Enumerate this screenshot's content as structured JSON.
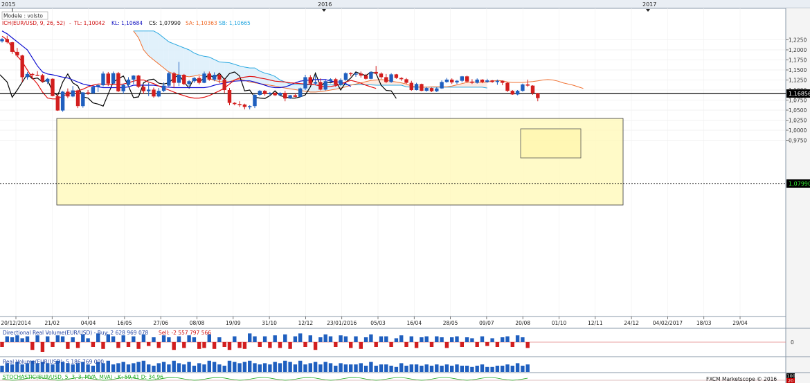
{
  "header": {
    "years": [
      "2015",
      "2016",
      "2017"
    ],
    "mode_label": "Modele : volsto",
    "indicator_label": "ICH(EUR/USD, 9, 26, 52)",
    "tl": "TL: 1,10042",
    "kl": "KL: 1,10684",
    "cs": "CS: 1,07990",
    "sa": "SA: 1,10363",
    "sb": "SB: 1,10665"
  },
  "price_axis": {
    "ticks": [
      "1,2250",
      "1,2000",
      "1,1750",
      "1,1500",
      "1,1250",
      "1,1000",
      "1,0750",
      "1,0500",
      "1,0250",
      "1,0000",
      "0,9750"
    ],
    "hline_label": "1,16856",
    "last_label": "1,07990"
  },
  "date_axis": {
    "labels": [
      "20/12/2014",
      "21/02",
      "04/04",
      "16/05",
      "27/06",
      "08/08",
      "19/09",
      "31/10",
      "12/12",
      "23/01/2016",
      "05/03",
      "16/04",
      "28/05",
      "09/07",
      "20/08",
      "01/10",
      "12/11",
      "24/12",
      "04/02/2017",
      "18/03",
      "29/04"
    ]
  },
  "panels": {
    "directional": {
      "title": "Directional Real Volume(EUR/USD) -  Buy: 2 628 969 078",
      "sell": "Sell: -2 557 797 566",
      "zero": "0"
    },
    "volume": {
      "title": "Real Volume(EUR/USD): 5 186 769 000",
      "top": "100"
    },
    "stochastic": {
      "title": "STOCHASTIC(EUR/USD, 5, 3, 3, MVA, MVA) - K: 59,41  D: 34,96",
      "bottom": "20"
    }
  },
  "footer": {
    "brand": "FXCM Marketscope © 2016"
  },
  "colors": {
    "up": "#1f5fbf",
    "down": "#d21e1e",
    "tenkan": "#e01010",
    "kijun": "#1010d0",
    "senkou_a": "#f07030",
    "senkou_b": "#29a8e0",
    "chikou": "#000000",
    "box": "#fff8b8"
  },
  "chart_data": {
    "type": "candlestick",
    "timeframe": "weekly",
    "symbol": "EUR/USD",
    "start_date": "20/12/2014",
    "ylim": [
      0.9675,
      1.2475
    ],
    "hline": 1.16856,
    "last_price": 1.0799,
    "candles": [
      [
        1.2214,
        1.2298,
        1.218,
        1.227
      ],
      [
        1.227,
        1.235,
        1.216,
        1.219
      ],
      [
        1.219,
        1.22,
        1.19,
        1.195
      ],
      [
        1.195,
        1.205,
        1.182,
        1.186
      ],
      [
        1.186,
        1.188,
        1.12,
        1.132
      ],
      [
        1.132,
        1.145,
        1.126,
        1.14
      ],
      [
        1.14,
        1.143,
        1.128,
        1.138
      ],
      [
        1.138,
        1.147,
        1.135,
        1.137
      ],
      [
        1.137,
        1.14,
        1.118,
        1.121
      ],
      [
        1.121,
        1.13,
        1.115,
        1.128
      ],
      [
        1.128,
        1.129,
        1.084,
        1.085
      ],
      [
        1.085,
        1.09,
        1.048,
        1.049
      ],
      [
        1.049,
        1.098,
        1.046,
        1.096
      ],
      [
        1.096,
        1.104,
        1.08,
        1.084
      ],
      [
        1.084,
        1.11,
        1.082,
        1.099
      ],
      [
        1.099,
        1.101,
        1.055,
        1.06
      ],
      [
        1.06,
        1.095,
        1.056,
        1.094
      ],
      [
        1.094,
        1.1,
        1.088,
        1.092
      ],
      [
        1.092,
        1.11,
        1.09,
        1.108
      ],
      [
        1.108,
        1.115,
        1.095,
        1.112
      ],
      [
        1.112,
        1.146,
        1.109,
        1.141
      ],
      [
        1.141,
        1.145,
        1.11,
        1.116
      ],
      [
        1.116,
        1.146,
        1.114,
        1.142
      ],
      [
        1.142,
        1.145,
        1.095,
        1.097
      ],
      [
        1.097,
        1.115,
        1.09,
        1.113
      ],
      [
        1.113,
        1.132,
        1.108,
        1.126
      ],
      [
        1.126,
        1.137,
        1.115,
        1.136
      ],
      [
        1.136,
        1.138,
        1.105,
        1.108
      ],
      [
        1.108,
        1.112,
        1.09,
        1.097
      ],
      [
        1.097,
        1.118,
        1.085,
        1.101
      ],
      [
        1.101,
        1.106,
        1.081,
        1.084
      ],
      [
        1.084,
        1.105,
        1.082,
        1.098
      ],
      [
        1.098,
        1.119,
        1.095,
        1.111
      ],
      [
        1.111,
        1.145,
        1.108,
        1.142
      ],
      [
        1.142,
        1.145,
        1.105,
        1.118
      ],
      [
        1.118,
        1.17,
        1.11,
        1.138
      ],
      [
        1.138,
        1.14,
        1.112,
        1.115
      ],
      [
        1.115,
        1.125,
        1.11,
        1.122
      ],
      [
        1.122,
        1.132,
        1.118,
        1.13
      ],
      [
        1.13,
        1.135,
        1.114,
        1.118
      ],
      [
        1.118,
        1.146,
        1.117,
        1.141
      ],
      [
        1.141,
        1.146,
        1.123,
        1.126
      ],
      [
        1.126,
        1.144,
        1.122,
        1.138
      ],
      [
        1.138,
        1.142,
        1.117,
        1.126
      ],
      [
        1.126,
        1.13,
        1.092,
        1.1
      ],
      [
        1.1,
        1.105,
        1.062,
        1.068
      ],
      [
        1.068,
        1.07,
        1.062,
        1.065
      ],
      [
        1.065,
        1.072,
        1.058,
        1.064
      ],
      [
        1.064,
        1.066,
        1.052,
        1.058
      ],
      [
        1.058,
        1.062,
        1.052,
        1.06
      ],
      [
        1.06,
        1.09,
        1.055,
        1.088
      ],
      [
        1.088,
        1.1,
        1.085,
        1.098
      ],
      [
        1.098,
        1.1,
        1.086,
        1.09
      ],
      [
        1.09,
        1.095,
        1.086,
        1.093
      ],
      [
        1.093,
        1.095,
        1.085,
        1.087
      ],
      [
        1.087,
        1.095,
        1.085,
        1.093
      ],
      [
        1.093,
        1.098,
        1.072,
        1.079
      ],
      [
        1.079,
        1.088,
        1.078,
        1.087
      ],
      [
        1.087,
        1.092,
        1.082,
        1.083
      ],
      [
        1.083,
        1.106,
        1.082,
        1.104
      ],
      [
        1.104,
        1.138,
        1.1,
        1.132
      ],
      [
        1.132,
        1.137,
        1.115,
        1.116
      ],
      [
        1.116,
        1.138,
        1.112,
        1.12
      ],
      [
        1.12,
        1.129,
        1.099,
        1.101
      ],
      [
        1.101,
        1.125,
        1.099,
        1.122
      ],
      [
        1.122,
        1.129,
        1.118,
        1.127
      ],
      [
        1.127,
        1.13,
        1.108,
        1.113
      ],
      [
        1.113,
        1.129,
        1.11,
        1.125
      ],
      [
        1.125,
        1.144,
        1.123,
        1.142
      ],
      [
        1.142,
        1.144,
        1.134,
        1.14
      ],
      [
        1.14,
        1.144,
        1.133,
        1.141
      ],
      [
        1.141,
        1.146,
        1.131,
        1.136
      ],
      [
        1.136,
        1.14,
        1.126,
        1.128
      ],
      [
        1.128,
        1.146,
        1.127,
        1.145
      ],
      [
        1.145,
        1.16,
        1.139,
        1.141
      ],
      [
        1.141,
        1.144,
        1.128,
        1.132
      ],
      [
        1.132,
        1.14,
        1.117,
        1.12
      ],
      [
        1.12,
        1.142,
        1.118,
        1.139
      ],
      [
        1.139,
        1.14,
        1.128,
        1.13
      ],
      [
        1.13,
        1.132,
        1.123,
        1.127
      ],
      [
        1.127,
        1.13,
        1.115,
        1.118
      ],
      [
        1.118,
        1.123,
        1.098,
        1.1
      ],
      [
        1.1,
        1.118,
        1.099,
        1.115
      ],
      [
        1.115,
        1.116,
        1.097,
        1.098
      ],
      [
        1.098,
        1.108,
        1.096,
        1.105
      ],
      [
        1.105,
        1.106,
        1.095,
        1.097
      ],
      [
        1.097,
        1.107,
        1.095,
        1.104
      ],
      [
        1.104,
        1.124,
        1.103,
        1.12
      ],
      [
        1.12,
        1.13,
        1.118,
        1.126
      ],
      [
        1.126,
        1.129,
        1.115,
        1.119
      ],
      [
        1.119,
        1.125,
        1.115,
        1.123
      ],
      [
        1.123,
        1.135,
        1.119,
        1.134
      ],
      [
        1.134,
        1.136,
        1.118,
        1.121
      ],
      [
        1.121,
        1.127,
        1.115,
        1.118
      ],
      [
        1.118,
        1.129,
        1.116,
        1.126
      ],
      [
        1.126,
        1.127,
        1.117,
        1.12
      ],
      [
        1.12,
        1.128,
        1.118,
        1.124
      ],
      [
        1.124,
        1.125,
        1.118,
        1.12
      ],
      [
        1.12,
        1.126,
        1.113,
        1.123
      ],
      [
        1.123,
        1.124,
        1.112,
        1.118
      ],
      [
        1.118,
        1.12,
        1.095,
        1.098
      ],
      [
        1.098,
        1.1,
        1.088,
        1.089
      ],
      [
        1.089,
        1.1,
        1.087,
        1.098
      ],
      [
        1.098,
        1.116,
        1.096,
        1.114
      ],
      [
        1.114,
        1.126,
        1.108,
        1.111
      ],
      [
        1.111,
        1.112,
        1.088,
        1.092
      ],
      [
        1.092,
        1.093,
        1.072,
        1.0799
      ]
    ],
    "tenkan": [
      1.234,
      1.225,
      1.205,
      1.185,
      1.17,
      1.15,
      1.13,
      1.115,
      1.095,
      1.08,
      1.078,
      1.078,
      1.085,
      1.09,
      1.095,
      1.098,
      1.102,
      1.108,
      1.112,
      1.115,
      1.115,
      1.114,
      1.114,
      1.114,
      1.115,
      1.118,
      1.122,
      1.125,
      1.125,
      1.12,
      1.116,
      1.11,
      1.105,
      1.1,
      1.095,
      1.09,
      1.086,
      1.082,
      1.08,
      1.08,
      1.082,
      1.086,
      1.092,
      1.098,
      1.105,
      1.115,
      1.125,
      1.13,
      1.132,
      1.134,
      1.133,
      1.13,
      1.128,
      1.125,
      1.122,
      1.121,
      1.12,
      1.118,
      1.117,
      1.116,
      1.115,
      1.114,
      1.113,
      1.11,
      1.108,
      1.109,
      1.111,
      1.114,
      1.12,
      1.124,
      1.121,
      1.117,
      1.112,
      1.108,
      1.104
    ],
    "kijun": [
      1.247,
      1.24,
      1.23,
      1.22,
      1.21,
      1.2,
      1.18,
      1.16,
      1.145,
      1.14,
      1.138,
      1.135,
      1.132,
      1.13,
      1.125,
      1.12,
      1.115,
      1.112,
      1.11,
      1.108,
      1.106,
      1.106,
      1.106,
      1.106,
      1.106,
      1.108,
      1.112,
      1.112,
      1.112,
      1.112,
      1.112,
      1.11,
      1.108,
      1.107,
      1.106,
      1.106,
      1.106,
      1.106,
      1.106,
      1.106,
      1.106,
      1.108,
      1.112,
      1.115,
      1.117,
      1.12,
      1.122,
      1.123,
      1.123,
      1.123,
      1.12,
      1.116,
      1.112,
      1.108,
      1.106,
      1.106,
      1.108,
      1.112,
      1.118,
      1.122,
      1.124,
      1.125,
      1.126,
      1.126,
      1.126,
      1.122,
      1.12,
      1.12,
      1.116,
      1.109
    ],
    "senkou_a": [
      1.247,
      1.23,
      1.2,
      1.185,
      1.175,
      1.165,
      1.155,
      1.145,
      1.14,
      1.138,
      1.135,
      1.133,
      1.135,
      1.138,
      1.134,
      1.129,
      1.124,
      1.121,
      1.12,
      1.121,
      1.125,
      1.127,
      1.124,
      1.12,
      1.118,
      1.116,
      1.114,
      1.112,
      1.11,
      1.107,
      1.105,
      1.103,
      1.101,
      1.099,
      1.097,
      1.095,
      1.095,
      1.096,
      1.098,
      1.1,
      1.102,
      1.105,
      1.108,
      1.112,
      1.115,
      1.118,
      1.121,
      1.124,
      1.125,
      1.126,
      1.125,
      1.122,
      1.12,
      1.118,
      1.115,
      1.11,
      1.108,
      1.107,
      1.107,
      1.108,
      1.108,
      1.108,
      1.108,
      1.11,
      1.113,
      1.116,
      1.119,
      1.12,
      1.12,
      1.119,
      1.12,
      1.122,
      1.124,
      1.123,
      1.12,
      1.119,
      1.119,
      1.119,
      1.12,
      1.121,
      1.123,
      1.125,
      1.126,
      1.125,
      1.122,
      1.118,
      1.115,
      1.112,
      1.108,
      1.104
    ],
    "senkou_b": [
      1.247,
      1.247,
      1.247,
      1.247,
      1.247,
      1.24,
      1.23,
      1.22,
      1.215,
      1.21,
      1.205,
      1.2,
      1.192,
      1.187,
      1.184,
      1.182,
      1.176,
      1.17,
      1.169,
      1.168,
      1.164,
      1.16,
      1.157,
      1.155,
      1.155,
      1.147,
      1.142,
      1.139,
      1.134,
      1.125,
      1.12,
      1.115,
      1.114,
      1.113,
      1.113,
      1.113,
      1.113,
      1.113,
      1.113,
      1.113,
      1.113,
      1.113,
      1.113,
      1.113,
      1.113,
      1.113,
      1.113,
      1.113,
      1.112,
      1.112,
      1.112,
      1.112,
      1.112,
      1.112,
      1.108,
      1.107,
      1.107,
      1.107,
      1.107,
      1.107,
      1.107,
      1.107,
      1.107,
      1.107,
      1.107,
      1.107,
      1.107,
      1.107,
      1.107,
      1.107,
      1.105
    ],
    "chikou": [
      1.145,
      1.133,
      1.12,
      1.082,
      1.1,
      1.12,
      1.14,
      1.128,
      1.13,
      1.12,
      1.125,
      1.096,
      1.086,
      1.12,
      1.14,
      1.118,
      1.11,
      1.083,
      1.08,
      1.068,
      1.065,
      1.06,
      1.09,
      1.12,
      1.128,
      1.135,
      1.11,
      1.081,
      1.083,
      1.118,
      1.125,
      1.127,
      1.117,
      1.115,
      1.118,
      1.13,
      1.138,
      1.12,
      1.105,
      1.13,
      1.12,
      1.13,
      1.138,
      1.13,
      1.142,
      1.126,
      1.141,
      1.145,
      1.135,
      1.098,
      1.1,
      1.082,
      1.08,
      1.079,
      1.086,
      1.098,
      1.086,
      1.083,
      1.08,
      1.08,
      1.083,
      1.088,
      1.108,
      1.142,
      1.11,
      1.12,
      1.118,
      1.123,
      1.1,
      1.119,
      1.13,
      1.145,
      1.14,
      1.136,
      1.145,
      1.141,
      1.112,
      1.099,
      1.098,
      1.079
    ],
    "directional_volume": [
      -0.5,
      0.6,
      0.5,
      0.7,
      0.4,
      0.6,
      -0.8,
      0.7,
      -1.0,
      0.6,
      -0.5,
      0.7,
      0.6,
      -0.7,
      0.5,
      -0.6,
      0.8,
      0.4,
      -0.5,
      0.9,
      -0.7,
      0.8,
      0.6,
      -0.6,
      0.7,
      -0.5,
      0.6,
      -0.7,
      0.8,
      -0.4,
      0.5,
      -0.6,
      0.7,
      0.5,
      -0.8,
      0.6,
      -0.6,
      0.7,
      0.5,
      -0.7,
      -0.6,
      0.8,
      -0.7,
      0.5,
      -0.5,
      -0.8,
      0.6,
      -0.6,
      -0.7,
      0.9,
      0.6,
      -0.5,
      0.6,
      -0.6,
      0.7,
      -0.6,
      0.8,
      -0.7,
      0.6,
      0.9,
      -0.5,
      0.7,
      -0.8,
      0.5,
      0.8,
      0.6,
      -0.5,
      0.7,
      0.6,
      -0.6,
      0.6,
      -0.7,
      0.5,
      0.8,
      -0.5,
      0.6,
      0.6,
      -0.5,
      0.4,
      0.7,
      -0.5,
      0.6,
      -0.6,
      0.5,
      0.6,
      -0.5,
      0.6,
      0.5,
      -0.6,
      0.5,
      0.6,
      -0.5,
      0.5,
      0.4,
      -0.5,
      0.6,
      -0.4,
      0.4,
      -0.5,
      0.5,
      0.6,
      -0.5,
      0.7,
      0.5,
      -0.6
    ],
    "real_volume": [
      0.5,
      0.7,
      0.6,
      0.8,
      0.6,
      0.7,
      0.9,
      0.7,
      0.8,
      0.7,
      0.6,
      0.9,
      0.8,
      0.7,
      0.6,
      0.7,
      0.8,
      0.6,
      0.5,
      0.8,
      0.7,
      0.9,
      0.6,
      0.7,
      0.8,
      0.6,
      0.7,
      0.8,
      0.9,
      0.6,
      0.5,
      0.7,
      0.8,
      0.6,
      0.9,
      0.7,
      0.6,
      0.8,
      0.5,
      0.7,
      0.6,
      0.9,
      0.8,
      0.6,
      0.5,
      0.9,
      0.8,
      0.7,
      0.8,
      0.9,
      0.7,
      0.6,
      0.7,
      0.6,
      0.8,
      0.7,
      0.9,
      0.8,
      0.6,
      0.9,
      0.6,
      0.7,
      0.8,
      0.6,
      0.8,
      0.7,
      0.5,
      0.7,
      0.6,
      0.6,
      0.6,
      0.7,
      0.5,
      0.8,
      0.5,
      0.6,
      0.6,
      0.5,
      0.4,
      0.7,
      0.5,
      0.6,
      0.6,
      0.5,
      0.6,
      0.5,
      0.6,
      0.5,
      0.6,
      0.5,
      0.6,
      0.5,
      0.5,
      0.4,
      0.5,
      0.6,
      0.4,
      0.4,
      0.5,
      0.5,
      0.6,
      0.5,
      0.7,
      0.5,
      0.6
    ]
  }
}
